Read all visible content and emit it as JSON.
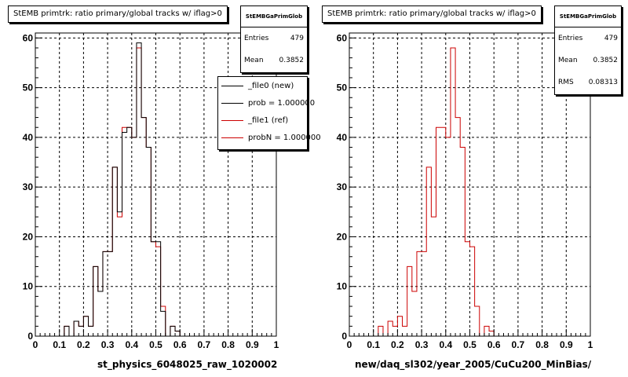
{
  "colors": {
    "new": "#000000",
    "ref": "#cc0000"
  },
  "left": {
    "title": "StEMB primtrk: ratio primary/global tracks w/ iflag>0",
    "stats": {
      "name": "StEMBGaPrimGlob",
      "entries_label": "Entries",
      "entries": "479",
      "mean_label": "Mean",
      "mean": "0.3852"
    },
    "legend": [
      {
        "label": "_file0 (new)",
        "color": "#000000"
      },
      {
        "label": "prob = 1.000000",
        "color": "#000000"
      },
      {
        "label": "_file1 (ref)",
        "color": "#cc0000"
      },
      {
        "label": "probN = 1.000000",
        "color": "#cc0000"
      }
    ],
    "xlabel": "st_physics_6048025_raw_1020002"
  },
  "right": {
    "title": "StEMB primtrk: ratio primary/global tracks w/ iflag>0",
    "stats": {
      "name": "StEMBGaPrimGlob",
      "entries_label": "Entries",
      "entries": "479",
      "mean_label": "Mean",
      "mean": "0.3852",
      "rms_label": "RMS",
      "rms": "0.08313"
    },
    "xlabel": "new/daq_sl302/year_2005/CuCu200_MinBias/"
  },
  "chart_data": [
    {
      "type": "bar",
      "title": "StEMB primtrk: ratio primary/global tracks w/ iflag>0",
      "xlabel": "st_physics_6048025_raw_1020002",
      "xlim": [
        0,
        1
      ],
      "ylim": [
        0,
        61
      ],
      "grid": true,
      "bins": 50,
      "xticks": [
        "0",
        "0.1",
        "0.2",
        "0.3",
        "0.4",
        "0.5",
        "0.6",
        "0.7",
        "0.8",
        "0.9",
        "1"
      ],
      "yticks": [
        "0",
        "10",
        "20",
        "30",
        "40",
        "50",
        "60"
      ],
      "series": [
        {
          "name": "_file0 (new)",
          "color": "#000000",
          "values": [
            0,
            0,
            0,
            0,
            0,
            0,
            2,
            0,
            3,
            2,
            4,
            2,
            14,
            9,
            17,
            17,
            34,
            25,
            41,
            42,
            40,
            59,
            44,
            38,
            19,
            19,
            5,
            0,
            2,
            1,
            0,
            0,
            0,
            0,
            0,
            0,
            0,
            0,
            0,
            0,
            0,
            0,
            0,
            0,
            0,
            0,
            0,
            0,
            0,
            0
          ]
        },
        {
          "name": "_file1 (ref)",
          "color": "#cc0000",
          "values": [
            0,
            0,
            0,
            0,
            0,
            0,
            2,
            0,
            3,
            2,
            4,
            2,
            14,
            9,
            17,
            17,
            34,
            24,
            42,
            42,
            40,
            58,
            44,
            38,
            19,
            18,
            6,
            0,
            2,
            1,
            0,
            0,
            0,
            0,
            0,
            0,
            0,
            0,
            0,
            0,
            0,
            0,
            0,
            0,
            0,
            0,
            0,
            0,
            0,
            0
          ]
        }
      ],
      "legend": {
        "position": "top-right"
      }
    },
    {
      "type": "bar",
      "title": "StEMB primtrk: ratio primary/global tracks w/ iflag>0",
      "xlabel": "new/daq_sl302/year_2005/CuCu200_MinBias/",
      "xlim": [
        0,
        1
      ],
      "ylim": [
        0,
        61
      ],
      "grid": true,
      "bins": 50,
      "xticks": [
        "0",
        "0.1",
        "0.2",
        "0.3",
        "0.4",
        "0.5",
        "0.6",
        "0.7",
        "0.8",
        "0.9",
        "1"
      ],
      "yticks": [
        "0",
        "10",
        "20",
        "30",
        "40",
        "50",
        "60"
      ],
      "series": [
        {
          "color": "#cc0000",
          "values": [
            0,
            0,
            0,
            0,
            0,
            0,
            2,
            0,
            3,
            2,
            4,
            2,
            14,
            9,
            17,
            17,
            34,
            24,
            42,
            42,
            40,
            58,
            44,
            38,
            19,
            18,
            6,
            0,
            2,
            1,
            0,
            0,
            0,
            0,
            0,
            0,
            0,
            0,
            0,
            0,
            0,
            0,
            0,
            0,
            0,
            0,
            0,
            0,
            0,
            0
          ]
        }
      ]
    }
  ]
}
